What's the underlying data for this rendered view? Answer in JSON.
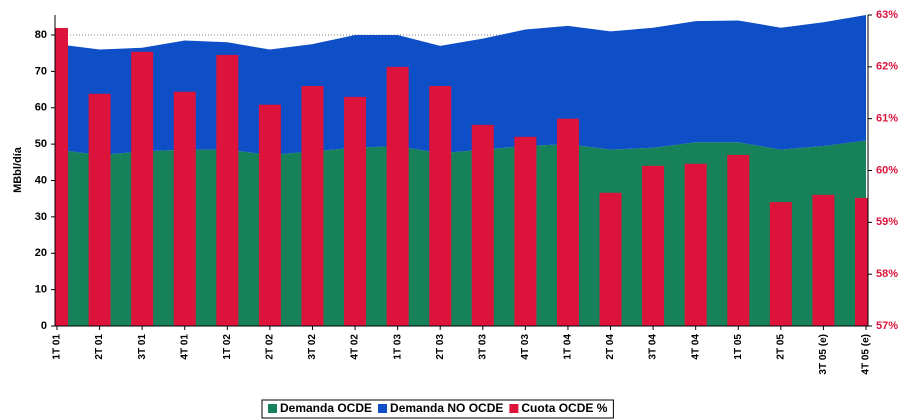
{
  "chart_data": {
    "type": "stacked-area-bar",
    "y_label": "MBbl/día",
    "categories": [
      "1T 01",
      "2T 01",
      "3T 01",
      "4T 01",
      "1T 02",
      "2T 02",
      "3T 02",
      "4T 02",
      "1T 03",
      "2T 03",
      "3T 03",
      "4T 03",
      "1T 04",
      "2T 04",
      "3T 04",
      "4T 04",
      "1T 05",
      "2T 05",
      "3T 05 (e)",
      "4T 05 (e)"
    ],
    "series": [
      {
        "name": "Demanda OCDE",
        "color": "#178259",
        "type": "area",
        "values": [
          48.5,
          47,
          48,
          48.5,
          48.5,
          47,
          48,
          49,
          49.5,
          47.5,
          48.5,
          49.5,
          50,
          48.5,
          49,
          50.5,
          50.5,
          48.5,
          49.5,
          51
        ]
      },
      {
        "name": "Demanda NO OCDE",
        "color": "#0e4ec6",
        "type": "area",
        "values": [
          29,
          29,
          28.5,
          30,
          29.5,
          29,
          29.5,
          31,
          30.5,
          29.5,
          30.5,
          32,
          32.5,
          32.5,
          33,
          33.3,
          33.5,
          33.5,
          34,
          34.5
        ]
      },
      {
        "name": "Cuota OCDE %",
        "color": "#dc143c",
        "type": "bar",
        "axis": "y2",
        "values": [
          62.75,
          61.48,
          62.29,
          61.52,
          62.23,
          61.27,
          61.63,
          61.42,
          62.0,
          61.63,
          60.88,
          60.65,
          61.0,
          59.57,
          60.09,
          60.13,
          60.3,
          59.39,
          59.53,
          59.47
        ]
      }
    ],
    "ylim": [
      0,
      85.5
    ],
    "yticks": [
      0,
      10,
      20,
      30,
      40,
      50,
      60,
      70,
      80
    ],
    "y2lim": [
      57,
      63
    ],
    "y2ticks": [
      {
        "value": 57,
        "label": "57%"
      },
      {
        "value": 58,
        "label": "58%"
      },
      {
        "value": 59,
        "label": "59%"
      },
      {
        "value": 60,
        "label": "60%"
      },
      {
        "value": 61,
        "label": "61%"
      },
      {
        "value": 62,
        "label": "62%"
      },
      {
        "value": 63,
        "label": "63%"
      }
    ],
    "grid": true,
    "legend": "bottom"
  }
}
